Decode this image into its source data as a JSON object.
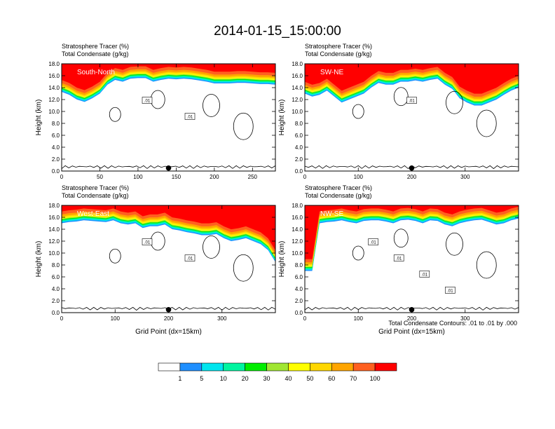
{
  "title": "2014-01-15_15:00:00",
  "colors": {
    "scale": [
      "#ffffff",
      "#1f8fff",
      "#00e5ee",
      "#00f5a0",
      "#00ee00",
      "#a0e632",
      "#ffff00",
      "#ffd700",
      "#ffa500",
      "#ff6020",
      "#ff0000"
    ],
    "contour": "#000000"
  },
  "colorbar": {
    "labels": [
      "1",
      "5",
      "10",
      "20",
      "30",
      "40",
      "50",
      "60",
      "70",
      "100"
    ]
  },
  "footnote": "Total Condensate Contours: .01 to .01 by .000",
  "chart_data": [
    {
      "type": "heatmap",
      "panel_label": "South-North",
      "subtitle_lines": [
        "Stratosphere Tracer   (%)",
        "Total Condensate   (g/kg)"
      ],
      "ylabel": "Height (km)",
      "xlabel": "",
      "xlim": [
        0,
        280
      ],
      "ylim": [
        0,
        18
      ],
      "xticks": [
        "0",
        "50",
        "100",
        "150",
        "200",
        "250"
      ],
      "xtick_values": [
        0,
        50,
        100,
        150,
        200,
        250
      ],
      "yticks": [
        "0.0",
        "2.0",
        "4.0",
        "6.0",
        "8.0",
        "10.0",
        "12.0",
        "14.0",
        "16.0",
        "18.0"
      ],
      "contour_labels": [
        ".01",
        ".01"
      ],
      "marker_x": 140,
      "tracer_bottom_km": [
        13.3,
        12.8,
        12.0,
        11.6,
        12.2,
        13.0,
        14.5,
        15.3,
        15.0,
        15.5,
        15.6,
        15.6,
        15.0,
        15.3,
        15.5,
        15.4,
        15.5,
        15.4,
        15.2,
        15.0,
        14.7,
        14.7,
        14.7,
        14.8,
        14.8,
        14.7,
        14.6,
        14.6,
        14.5
      ]
    },
    {
      "type": "heatmap",
      "panel_label": "SW-NE",
      "subtitle_lines": [
        "Stratosphere Tracer   (%)",
        "Total Condensate   (g/kg)"
      ],
      "ylabel": "Height (km)",
      "xlabel": "",
      "xlim": [
        0,
        400
      ],
      "ylim": [
        0,
        18
      ],
      "xticks": [
        "0",
        "100",
        "200",
        "300"
      ],
      "xtick_values": [
        0,
        100,
        200,
        300
      ],
      "yticks": [
        "0.0",
        "2.0",
        "4.0",
        "6.0",
        "8.0",
        "10.0",
        "12.0",
        "14.0",
        "16.0",
        "18.0"
      ],
      "contour_labels": [
        ".01"
      ],
      "marker_x": 200,
      "tracer_bottom_km": [
        13.0,
        12.5,
        12.8,
        13.5,
        12.5,
        11.5,
        12.0,
        12.5,
        13.0,
        14.0,
        14.8,
        14.5,
        14.5,
        15.0,
        15.0,
        15.2,
        15.0,
        15.3,
        15.5,
        14.5,
        13.8,
        12.2,
        11.5,
        11.0,
        11.0,
        11.5,
        12.0,
        12.8,
        13.5,
        14.0
      ]
    },
    {
      "type": "heatmap",
      "panel_label": "West-East",
      "subtitle_lines": [
        "Stratosphere Tracer   (%)",
        "Total Condensate   (g/kg)"
      ],
      "ylabel": "Height (km)",
      "xlabel": "Grid Point (dx=15km)",
      "xlim": [
        0,
        400
      ],
      "ylim": [
        0,
        18
      ],
      "xticks": [
        "0",
        "100",
        "200",
        "300"
      ],
      "xtick_values": [
        0,
        100,
        200,
        300
      ],
      "yticks": [
        "0.0",
        "2.0",
        "4.0",
        "6.0",
        "8.0",
        "10.0",
        "12.0",
        "14.0",
        "16.0",
        "18.0"
      ],
      "contour_labels": [
        ".01",
        ".01"
      ],
      "marker_x": 200,
      "tracer_bottom_km": [
        15.0,
        15.2,
        15.3,
        15.5,
        15.4,
        15.3,
        15.2,
        15.5,
        15.0,
        14.8,
        15.0,
        14.2,
        14.5,
        14.5,
        14.8,
        14.0,
        13.8,
        13.5,
        13.3,
        13.0,
        13.0,
        13.2,
        12.5,
        12.0,
        12.2,
        12.5,
        12.0,
        11.5,
        10.5,
        8.5
      ]
    },
    {
      "type": "heatmap",
      "panel_label": "NW-SE",
      "subtitle_lines": [
        "Stratosphere Tracer   (%)",
        "Total Condensate   (g/kg)"
      ],
      "ylabel": "Height (km)",
      "xlabel": "Grid Point (dx=15km)",
      "xlim": [
        0,
        400
      ],
      "ylim": [
        0,
        18
      ],
      "xticks": [
        "0",
        "100",
        "200",
        "300"
      ],
      "xtick_values": [
        0,
        100,
        200,
        300
      ],
      "yticks": [
        "0.0",
        "2.0",
        "4.0",
        "6.0",
        "8.0",
        "10.0",
        "12.0",
        "14.0",
        "16.0",
        "18.0"
      ],
      "contour_labels": [
        ".01",
        ".01",
        ".01",
        ".01"
      ],
      "marker_x": 200,
      "tracer_bottom_km": [
        7.0,
        7.0,
        15.0,
        15.2,
        15.3,
        15.5,
        15.2,
        15.0,
        15.4,
        15.5,
        15.5,
        15.3,
        15.0,
        15.5,
        15.6,
        15.4,
        15.0,
        15.5,
        15.4,
        14.8,
        14.5,
        15.0,
        15.3,
        15.5,
        15.6,
        15.2,
        14.8,
        15.0,
        15.5,
        15.8
      ]
    }
  ]
}
